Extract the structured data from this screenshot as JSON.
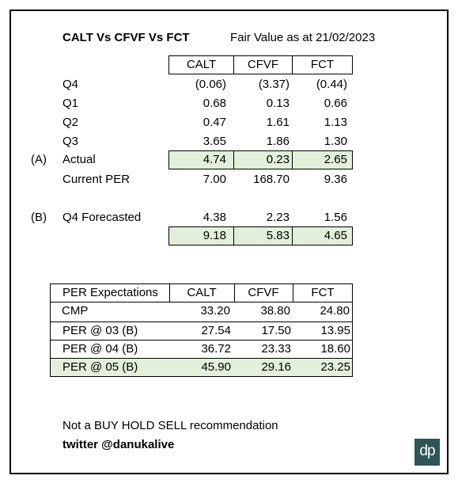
{
  "header": {
    "title": "CALT Vs CFVF Vs FCT",
    "fair_value": "Fair Value as at 21/02/2023"
  },
  "table1": {
    "columns": [
      "CALT",
      "CFVF",
      "FCT"
    ],
    "rows": [
      {
        "marker": "",
        "label": "Q4",
        "values": [
          "(0.06)",
          "(3.37)",
          "(0.44)"
        ]
      },
      {
        "marker": "",
        "label": "Q1",
        "values": [
          "0.68",
          "0.13",
          "0.66"
        ]
      },
      {
        "marker": "",
        "label": "Q2",
        "values": [
          "0.47",
          "1.61",
          "1.13"
        ]
      },
      {
        "marker": "",
        "label": "Q3",
        "values": [
          "3.65",
          "1.86",
          "1.30"
        ]
      },
      {
        "marker": "(A)",
        "label": "Actual",
        "values": [
          "4.74",
          "0.23",
          "2.65"
        ]
      },
      {
        "marker": "",
        "label": "Current PER",
        "values": [
          "7.00",
          "168.70",
          "9.36"
        ]
      },
      {
        "marker": "(B)",
        "label": "Q4 Forecasted",
        "values": [
          "4.38",
          "2.23",
          "1.56"
        ]
      },
      {
        "marker": "",
        "label": "",
        "values": [
          "9.18",
          "5.83",
          "4.65"
        ]
      }
    ]
  },
  "table2": {
    "columns": [
      "PER Expectations",
      "CALT",
      "CFVF",
      "FCT"
    ],
    "rows": [
      {
        "label": "CMP",
        "values": [
          "33.20",
          "38.80",
          "24.80"
        ]
      },
      {
        "label": "PER @ 03 (B)",
        "values": [
          "27.54",
          "17.50",
          "13.95"
        ]
      },
      {
        "label": "PER @ 04 (B)",
        "values": [
          "36.72",
          "23.33",
          "18.60"
        ]
      },
      {
        "label": "PER @ 05 (B)",
        "values": [
          "45.90",
          "29.16",
          "23.25"
        ]
      }
    ]
  },
  "footer": {
    "disclaimer": "Not a BUY HOLD SELL recommendation",
    "twitter": "twitter @danukalive"
  },
  "logo": {
    "text": "dp",
    "color": "#2f5557"
  }
}
